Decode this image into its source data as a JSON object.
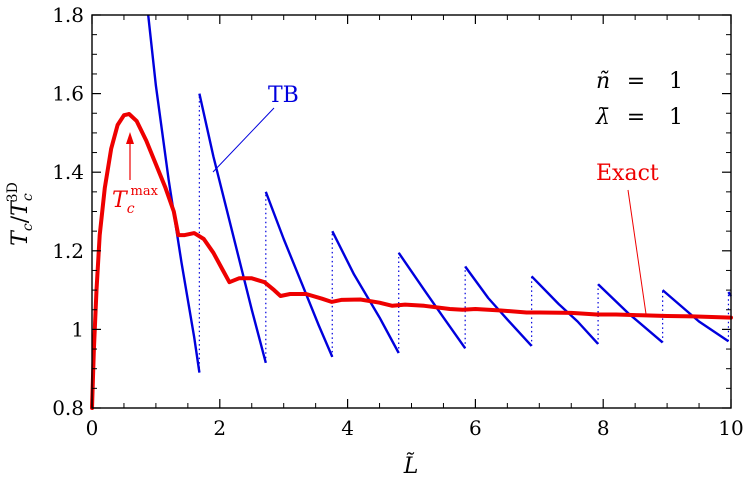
{
  "chart_data": {
    "type": "line",
    "xlabel": "L̃",
    "ylabel": {
      "base": "T",
      "sub": "c",
      "slash": "/",
      "base2": "T",
      "sub2": "c",
      "sup2": "3D"
    },
    "xlim": [
      0,
      10
    ],
    "ylim": [
      0.8,
      1.8
    ],
    "x_ticks": [
      "0",
      "2",
      "4",
      "6",
      "8",
      "10"
    ],
    "x_tick_values": [
      0,
      2,
      4,
      6,
      8,
      10
    ],
    "y_ticks": [
      "0.8",
      "1",
      "1.2",
      "1.4",
      "1.6",
      "1.8"
    ],
    "y_tick_values": [
      0.8,
      1.0,
      1.2,
      1.4,
      1.6,
      1.8
    ],
    "grid": false,
    "params": [
      {
        "symbol": "ñ",
        "eq": "=",
        "value": "1"
      },
      {
        "symbol": "λ̄",
        "eq": "=",
        "value": "1"
      }
    ],
    "series": [
      {
        "name": "TB",
        "color": "#0000dd",
        "segments": [
          [
            [
              0.88,
              1.8
            ],
            [
              1.0,
              1.62
            ],
            [
              1.2,
              1.38
            ],
            [
              1.4,
              1.17
            ],
            [
              1.6,
              0.98
            ],
            [
              1.68,
              0.89
            ]
          ],
          [
            [
              1.68,
              1.6
            ],
            [
              1.9,
              1.44
            ],
            [
              2.1,
              1.31
            ],
            [
              2.3,
              1.18
            ],
            [
              2.5,
              1.05
            ],
            [
              2.72,
              0.915
            ]
          ],
          [
            [
              2.72,
              1.35
            ],
            [
              3.0,
              1.23
            ],
            [
              3.3,
              1.11
            ],
            [
              3.55,
              1.01
            ],
            [
              3.76,
              0.93
            ]
          ],
          [
            [
              3.76,
              1.25
            ],
            [
              4.1,
              1.14
            ],
            [
              4.5,
              1.03
            ],
            [
              4.8,
              0.94
            ]
          ],
          [
            [
              4.8,
              1.195
            ],
            [
              5.2,
              1.1
            ],
            [
              5.5,
              1.03
            ],
            [
              5.84,
              0.952
            ]
          ],
          [
            [
              5.84,
              1.16
            ],
            [
              6.2,
              1.08
            ],
            [
              6.5,
              1.025
            ],
            [
              6.88,
              0.958
            ]
          ],
          [
            [
              6.88,
              1.135
            ],
            [
              7.3,
              1.065
            ],
            [
              7.6,
              1.02
            ],
            [
              7.92,
              0.963
            ]
          ],
          [
            [
              7.92,
              1.115
            ],
            [
              8.4,
              1.04
            ],
            [
              8.93,
              0.967
            ]
          ],
          [
            [
              8.93,
              1.1
            ],
            [
              9.5,
              1.02
            ],
            [
              9.96,
              0.97
            ]
          ],
          [
            [
              9.96,
              1.095
            ],
            [
              10.0,
              1.085
            ]
          ]
        ],
        "jumps": [
          1.68,
          2.72,
          3.76,
          4.8,
          5.84,
          6.88,
          7.92,
          8.93,
          9.96
        ]
      },
      {
        "name": "Exact",
        "color": "#ee0000",
        "points": [
          [
            0.0,
            0.8
          ],
          [
            0.03,
            0.95
          ],
          [
            0.07,
            1.1
          ],
          [
            0.12,
            1.24
          ],
          [
            0.2,
            1.36
          ],
          [
            0.3,
            1.46
          ],
          [
            0.4,
            1.52
          ],
          [
            0.5,
            1.545
          ],
          [
            0.58,
            1.548
          ],
          [
            0.7,
            1.53
          ],
          [
            0.85,
            1.48
          ],
          [
            1.0,
            1.42
          ],
          [
            1.15,
            1.36
          ],
          [
            1.28,
            1.3
          ],
          [
            1.35,
            1.24
          ],
          [
            1.45,
            1.24
          ],
          [
            1.6,
            1.245
          ],
          [
            1.75,
            1.23
          ],
          [
            1.9,
            1.195
          ],
          [
            2.05,
            1.15
          ],
          [
            2.15,
            1.12
          ],
          [
            2.3,
            1.13
          ],
          [
            2.5,
            1.13
          ],
          [
            2.7,
            1.12
          ],
          [
            2.85,
            1.1
          ],
          [
            2.95,
            1.085
          ],
          [
            3.1,
            1.09
          ],
          [
            3.35,
            1.09
          ],
          [
            3.6,
            1.078
          ],
          [
            3.75,
            1.07
          ],
          [
            3.9,
            1.075
          ],
          [
            4.2,
            1.076
          ],
          [
            4.5,
            1.068
          ],
          [
            4.7,
            1.06
          ],
          [
            4.9,
            1.063
          ],
          [
            5.2,
            1.06
          ],
          [
            5.6,
            1.052
          ],
          [
            5.8,
            1.05
          ],
          [
            6.0,
            1.052
          ],
          [
            6.4,
            1.048
          ],
          [
            6.8,
            1.043
          ],
          [
            7.0,
            1.043
          ],
          [
            7.5,
            1.042
          ],
          [
            7.9,
            1.038
          ],
          [
            8.2,
            1.038
          ],
          [
            8.6,
            1.036
          ],
          [
            9.0,
            1.034
          ],
          [
            9.4,
            1.033
          ],
          [
            10.0,
            1.03
          ]
        ]
      }
    ],
    "annotations": [
      {
        "text": "TB",
        "color": "#0000dd"
      },
      {
        "text": "Exact",
        "color": "#ee0000"
      },
      {
        "base": "T",
        "sub": "c",
        "sup": "max",
        "color": "#ee0000"
      }
    ]
  }
}
